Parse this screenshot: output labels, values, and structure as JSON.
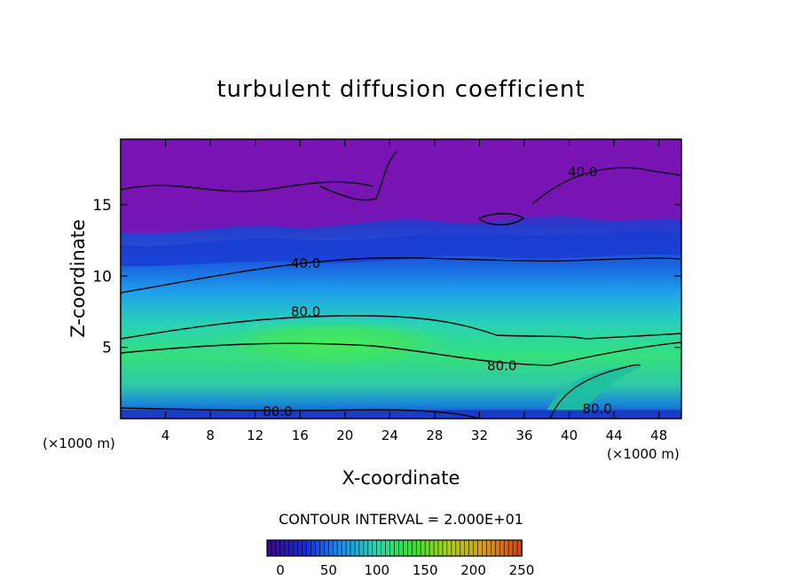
{
  "chart_data": {
    "type": "heatmap",
    "subtype": "filled contour plot",
    "title": "turbulent diffusion coefficient",
    "xlabel": "X-coordinate",
    "ylabel": "Z-coordinate",
    "x_unit": "(×1000 m)",
    "z_unit": "(×1000 m)",
    "x_ticks": [
      4,
      8,
      12,
      16,
      20,
      24,
      28,
      32,
      36,
      40,
      44,
      48
    ],
    "y_ticks": [
      5,
      10,
      15
    ],
    "xlim": [
      0,
      50
    ],
    "ylim": [
      0,
      19.6
    ],
    "contour_interval_label": "CONTOUR INTERVAL = 2.000E+01",
    "contour_interval": 20,
    "contour_labels": [
      {
        "text": "40.0",
        "x": 16.5,
        "z": 10.9
      },
      {
        "text": "40.0",
        "x": 41.2,
        "z": 17.3
      },
      {
        "text": "80.0",
        "x": 16.5,
        "z": 7.5
      },
      {
        "text": "80.0",
        "x": 34.0,
        "z": 3.7
      },
      {
        "text": "80.0",
        "x": 14.0,
        "z": 0.5
      },
      {
        "text": "80.0",
        "x": 42.5,
        "z": 0.7
      }
    ],
    "colorbar": {
      "min": 0,
      "max": 250,
      "tick_labels": [
        "0",
        "50",
        "100",
        "150",
        "200",
        "250"
      ],
      "tick_values": [
        0,
        50,
        100,
        150,
        200,
        250
      ],
      "colors": [
        "#3a0a8c",
        "#1a2ad6",
        "#1f8ef0",
        "#28d6b0",
        "#3ae030",
        "#a8d21a",
        "#d89a1a",
        "#d24a1a"
      ]
    },
    "field_colors": {
      "upper_layer": "#7a14b4",
      "mid_layer": "#1a3ad0",
      "lower_layer": "#3ad8a6",
      "core": "#3ce86c"
    }
  }
}
